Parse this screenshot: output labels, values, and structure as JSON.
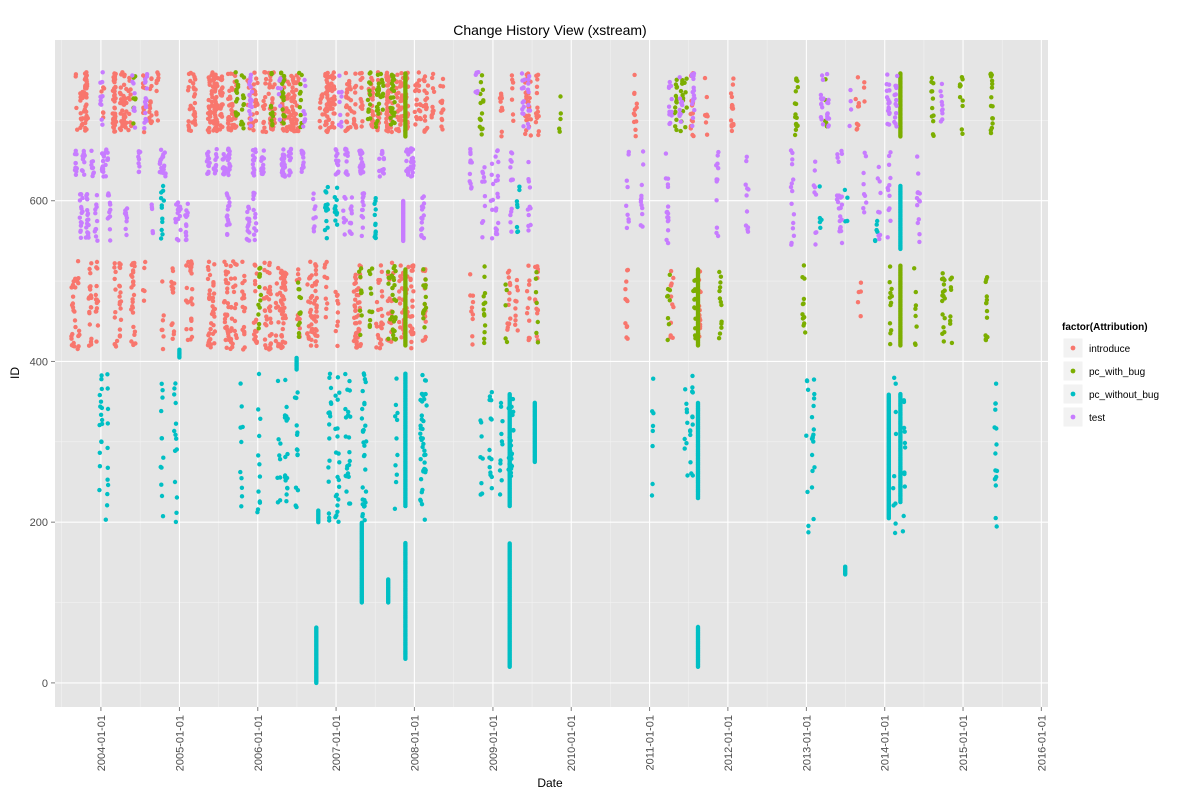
{
  "chart_data": {
    "type": "scatter",
    "title": "Change History View (xstream)",
    "xlabel": "Date",
    "ylabel": "ID",
    "x_ticks": [
      "2004-01-01",
      "2005-01-01",
      "2006-01-01",
      "2007-01-01",
      "2008-01-01",
      "2009-01-01",
      "2010-01-01",
      "2011-01-01",
      "2012-01-01",
      "2013-01-01",
      "2014-01-01",
      "2015-01-01",
      "2016-01-01"
    ],
    "y_ticks": [
      0,
      200,
      400,
      600
    ],
    "xlim": [
      "2003-06-01",
      "2016-02-01"
    ],
    "ylim": [
      -30,
      800
    ],
    "grid": true,
    "legend": {
      "title": "factor(Attribution)",
      "position": "right",
      "entries": [
        {
          "name": "introduce",
          "color": "#F8766D"
        },
        {
          "name": "pc_with_bug",
          "color": "#7CAE00"
        },
        {
          "name": "pc_without_bug",
          "color": "#00BFC4"
        },
        {
          "name": "test",
          "color": "#C77CFF"
        }
      ]
    },
    "series": [
      {
        "name": "introduce",
        "color": "#F8766D",
        "bands": [
          {
            "x": [
              "2003-08-01",
              "2008-06-01"
            ],
            "y": [
              685,
              760
            ],
            "n": 900
          },
          {
            "x": [
              "2003-08-01",
              "2008-03-01"
            ],
            "y": [
              415,
              525
            ],
            "n": 650
          },
          {
            "x": [
              "2008-09-01",
              "2009-08-01"
            ],
            "y": [
              420,
              520
            ],
            "n": 60
          },
          {
            "x": [
              "2008-09-01",
              "2009-08-01"
            ],
            "y": [
              680,
              760
            ],
            "n": 60
          },
          {
            "x": [
              "2010-08-01",
              "2011-12-01"
            ],
            "y": [
              425,
              515
            ],
            "n": 40
          },
          {
            "x": [
              "2010-08-01",
              "2012-04-01"
            ],
            "y": [
              680,
              760
            ],
            "n": 50
          },
          {
            "x": [
              "2012-09-01",
              "2013-12-01"
            ],
            "y": [
              685,
              760
            ],
            "n": 12
          },
          {
            "x": [
              "2013-01-01",
              "2014-02-01"
            ],
            "y": [
              450,
              515
            ],
            "n": 5
          }
        ]
      },
      {
        "name": "pc_with_bug",
        "color": "#7CAE00",
        "bands": [
          {
            "x": [
              "2004-03-01",
              "2008-03-01"
            ],
            "y": [
              690,
              760
            ],
            "n": 140
          },
          {
            "x": [
              "2006-01-01",
              "2008-03-01"
            ],
            "y": [
              425,
              520
            ],
            "n": 90
          },
          {
            "x": [
              "2008-09-01",
              "2009-08-01"
            ],
            "y": [
              420,
              520
            ],
            "n": 25
          },
          {
            "x": [
              "2008-09-01",
              "2009-12-01"
            ],
            "y": [
              680,
              760
            ],
            "n": 20
          },
          {
            "x": [
              "2010-08-01",
              "2011-12-01"
            ],
            "y": [
              425,
              515
            ],
            "n": 35
          },
          {
            "x": [
              "2010-08-01",
              "2011-12-01"
            ],
            "y": [
              680,
              760
            ],
            "n": 30
          },
          {
            "x": [
              "2012-09-01",
              "2015-07-01"
            ],
            "y": [
              680,
              760
            ],
            "n": 60
          },
          {
            "x": [
              "2012-09-01",
              "2015-07-01"
            ],
            "y": [
              420,
              520
            ],
            "n": 70
          }
        ],
        "vertical_runs": [
          {
            "x": "2007-11-20",
            "y": [
              420,
              515
            ]
          },
          {
            "x": "2011-08-15",
            "y": [
              420,
              515
            ]
          },
          {
            "x": "2014-03-15",
            "y": [
              420,
              520
            ]
          },
          {
            "x": "2014-03-15",
            "y": [
              680,
              760
            ]
          },
          {
            "x": "2007-11-20",
            "y": [
              680,
              760
            ]
          }
        ]
      },
      {
        "name": "pc_without_bug",
        "color": "#00BFC4",
        "bands": [
          {
            "x": [
              "2003-09-01",
              "2008-06-01"
            ],
            "y": [
              200,
              385
            ],
            "n": 260
          },
          {
            "x": [
              "2003-09-01",
              "2009-10-01"
            ],
            "y": [
              550,
              620
            ],
            "n": 60
          },
          {
            "x": [
              "2008-09-01",
              "2009-08-01"
            ],
            "y": [
              230,
              365
            ],
            "n": 60
          },
          {
            "x": [
              "2010-08-01",
              "2012-04-01"
            ],
            "y": [
              230,
              385
            ],
            "n": 30
          },
          {
            "x": [
              "2012-09-01",
              "2015-07-01"
            ],
            "y": [
              185,
              385
            ],
            "n": 60
          },
          {
            "x": [
              "2010-11-01",
              "2014-03-01"
            ],
            "y": [
              545,
              620
            ],
            "n": 15
          }
        ],
        "vertical_runs": [
          {
            "x": "2006-10-01",
            "y": [
              0,
              70
            ]
          },
          {
            "x": "2006-10-10",
            "y": [
              200,
              215
            ]
          },
          {
            "x": "2006-07-01",
            "y": [
              390,
              405
            ]
          },
          {
            "x": "2007-05-01",
            "y": [
              100,
              200
            ]
          },
          {
            "x": "2007-09-01",
            "y": [
              100,
              130
            ]
          },
          {
            "x": "2007-11-20",
            "y": [
              30,
              175
            ]
          },
          {
            "x": "2007-11-20",
            "y": [
              220,
              385
            ]
          },
          {
            "x": "2009-03-20",
            "y": [
              20,
              175
            ]
          },
          {
            "x": "2009-03-20",
            "y": [
              220,
              360
            ]
          },
          {
            "x": "2009-07-15",
            "y": [
              275,
              350
            ]
          },
          {
            "x": "2011-08-15",
            "y": [
              20,
              70
            ]
          },
          {
            "x": "2011-08-15",
            "y": [
              230,
              350
            ]
          },
          {
            "x": "2014-03-15",
            "y": [
              225,
              360
            ]
          },
          {
            "x": "2014-01-20",
            "y": [
              205,
              360
            ]
          },
          {
            "x": "2014-03-15",
            "y": [
              540,
              620
            ]
          },
          {
            "x": "2005-01-01",
            "y": [
              405,
              415
            ]
          },
          {
            "x": "2013-07-01",
            "y": [
              135,
              145
            ]
          }
        ]
      },
      {
        "name": "test",
        "color": "#C77CFF",
        "bands": [
          {
            "x": [
              "2003-08-01",
              "2008-03-01"
            ],
            "y": [
              630,
              665
            ],
            "n": 320
          },
          {
            "x": [
              "2003-09-01",
              "2008-03-01"
            ],
            "y": [
              550,
              610
            ],
            "n": 200
          },
          {
            "x": [
              "2003-08-01",
              "2008-03-01"
            ],
            "y": [
              690,
              760
            ],
            "n": 80
          },
          {
            "x": [
              "2008-09-01",
              "2009-08-01"
            ],
            "y": [
              550,
              665
            ],
            "n": 70
          },
          {
            "x": [
              "2008-09-01",
              "2009-08-01"
            ],
            "y": [
              690,
              760
            ],
            "n": 30
          },
          {
            "x": [
              "2010-08-01",
              "2012-04-01"
            ],
            "y": [
              545,
              665
            ],
            "n": 60
          },
          {
            "x": [
              "2010-08-01",
              "2012-04-01"
            ],
            "y": [
              690,
              760
            ],
            "n": 40
          },
          {
            "x": [
              "2012-09-01",
              "2015-07-01"
            ],
            "y": [
              545,
              665
            ],
            "n": 90
          },
          {
            "x": [
              "2012-09-01",
              "2015-07-01"
            ],
            "y": [
              690,
              760
            ],
            "n": 70
          }
        ],
        "vertical_runs": [
          {
            "x": "2007-11-10",
            "y": [
              550,
              600
            ]
          }
        ]
      }
    ]
  }
}
